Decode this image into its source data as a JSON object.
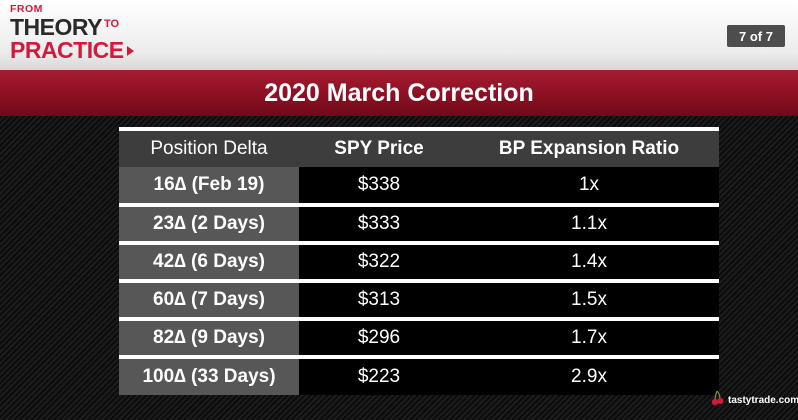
{
  "logo": {
    "from": "FROM",
    "theory": "THEORY",
    "to": "TO",
    "practice": "PRACTICE"
  },
  "page_indicator": "7 of 7",
  "title": "2020 March Correction",
  "table": {
    "headers": [
      "Position Delta",
      "SPY Price",
      "BP Expansion Ratio"
    ],
    "rows": [
      [
        "16∆ (Feb 19)",
        "$338",
        "1x"
      ],
      [
        "23∆ (2 Days)",
        "$333",
        "1.1x"
      ],
      [
        "42∆ (6 Days)",
        "$322",
        "1.4x"
      ],
      [
        "60∆ (7 Days)",
        "$313",
        "1.5x"
      ],
      [
        "82∆ (9 Days)",
        "$296",
        "1.7x"
      ],
      [
        "100∆ (33 Days)",
        "$223",
        "2.9x"
      ]
    ]
  },
  "brand": {
    "name": "tastytrade.com",
    "icon": "cherry-icon"
  },
  "colors": {
    "accent_red": "#d31a3c",
    "title_bar": "#8c1023",
    "header_cell": "#3d3d3d",
    "row_label_cell": "#575757"
  }
}
